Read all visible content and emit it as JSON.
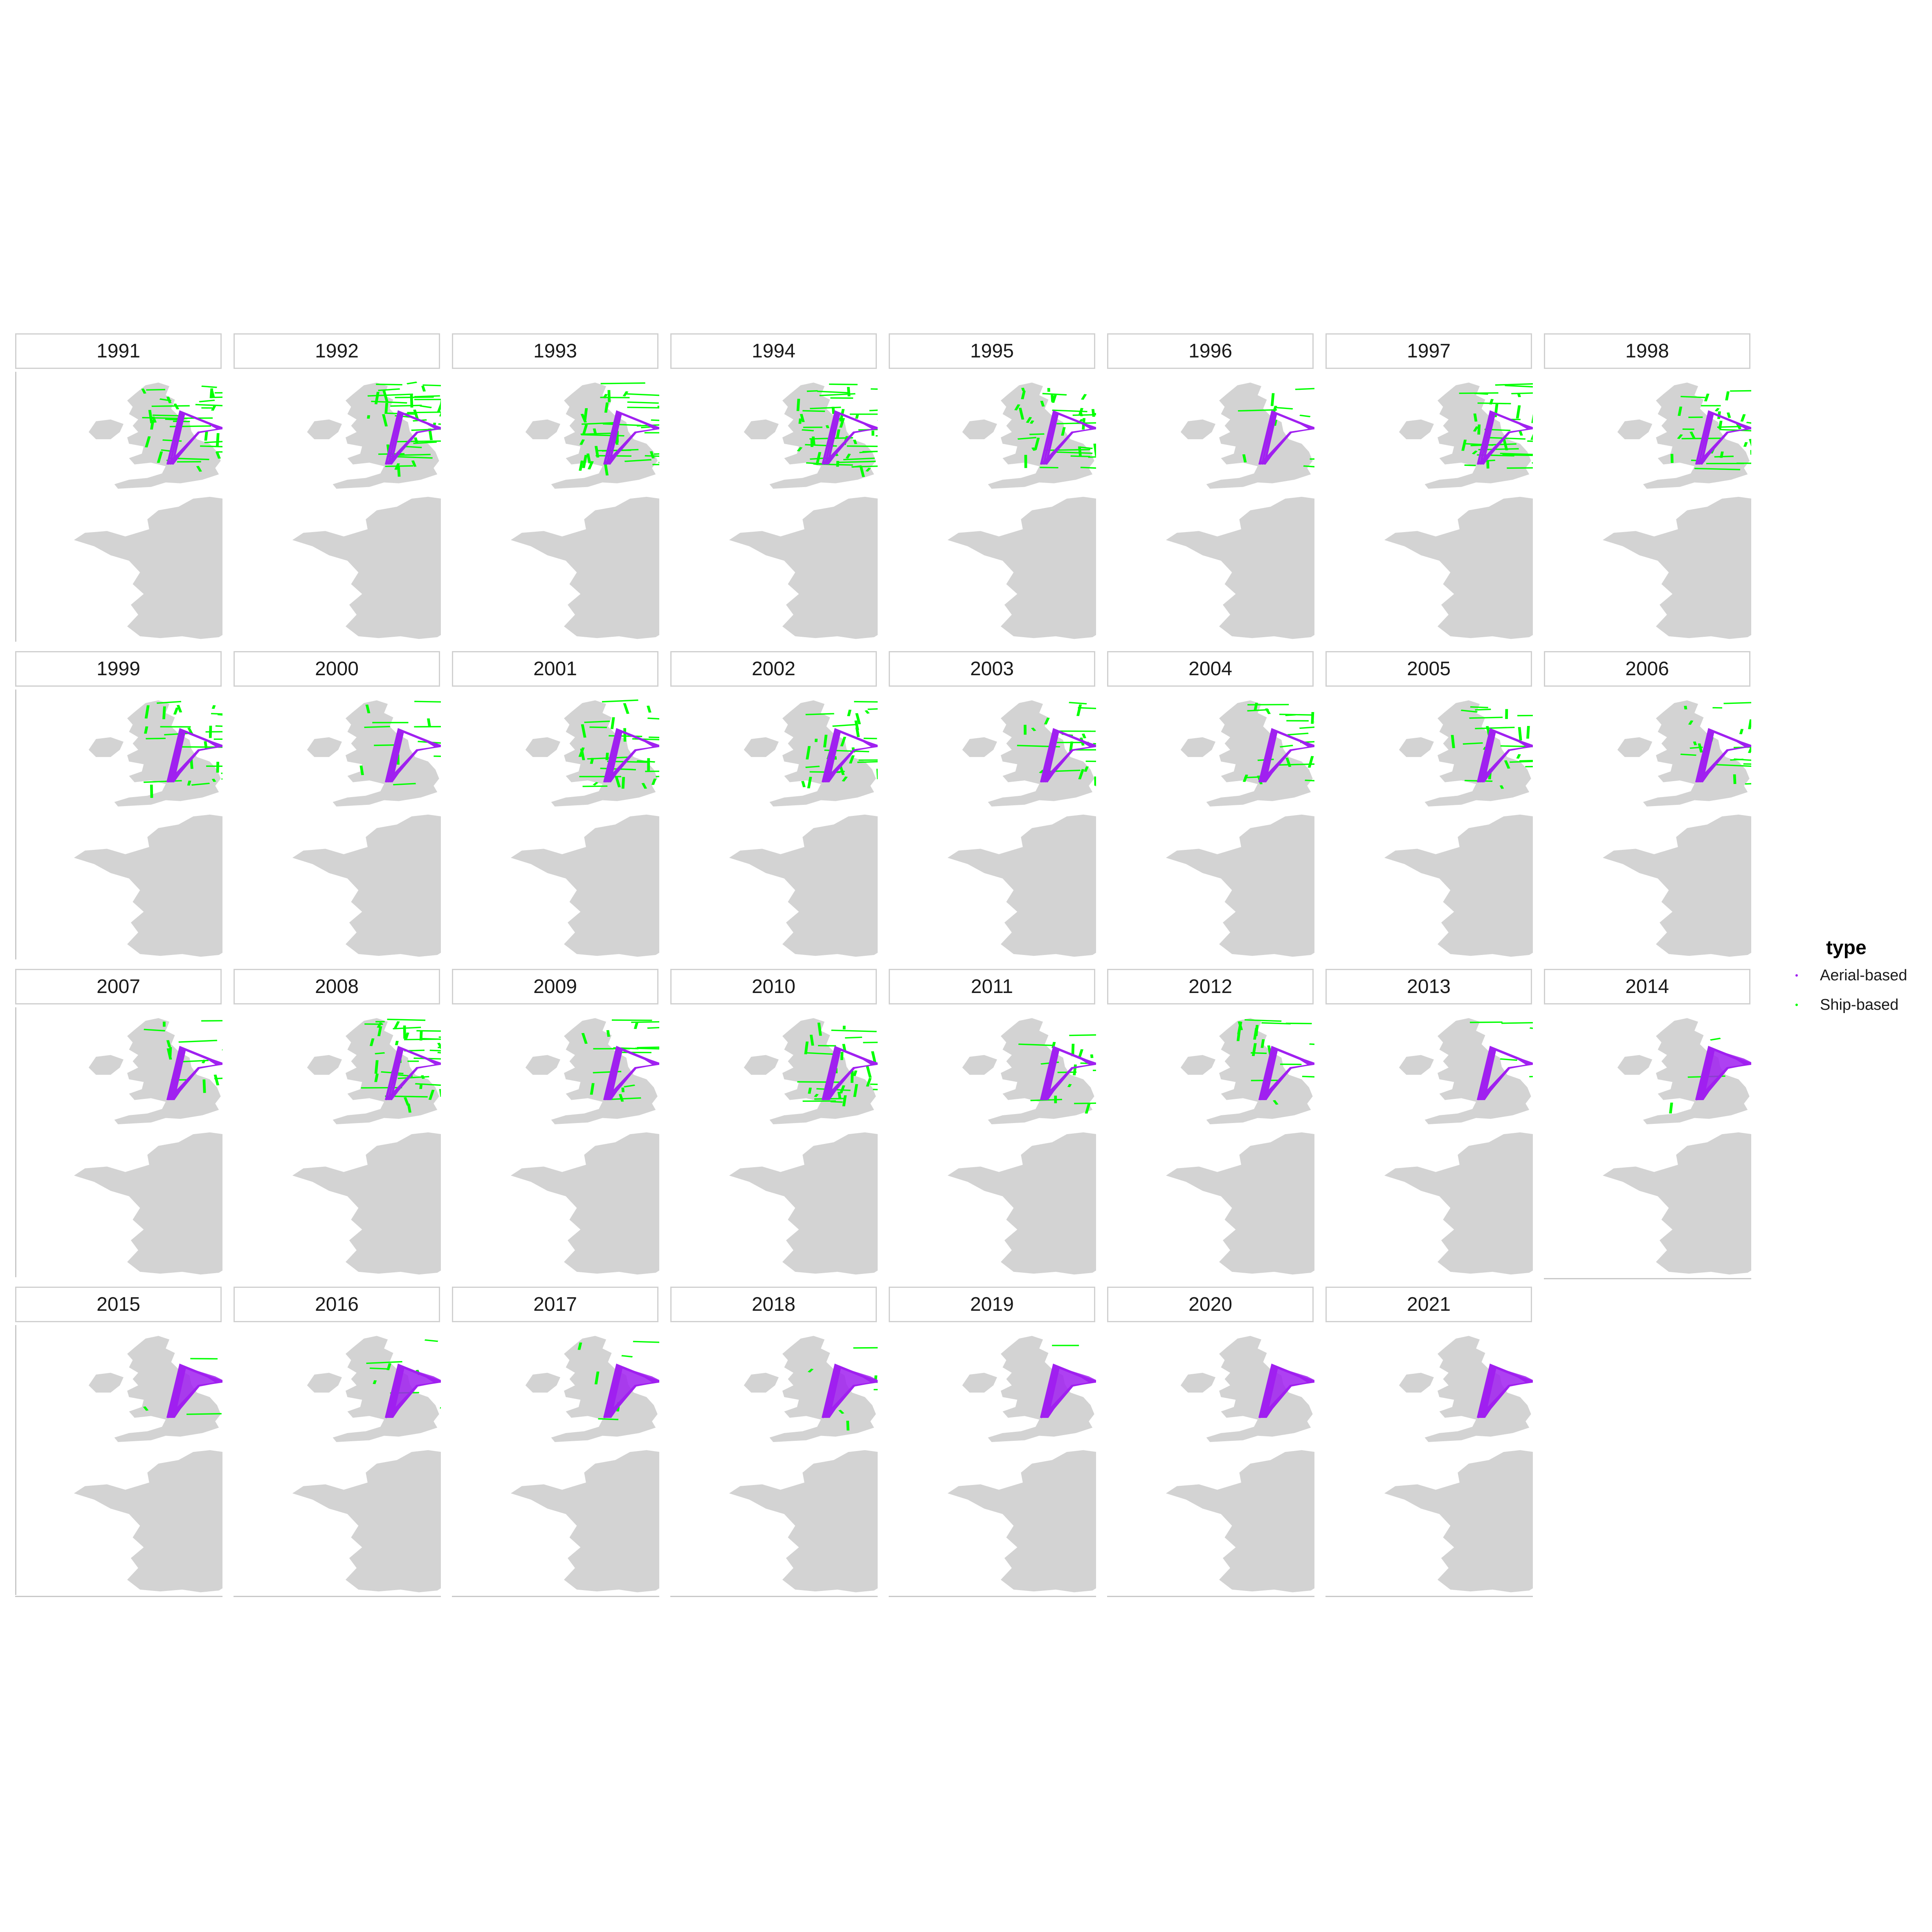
{
  "legend": {
    "title": "type",
    "items": [
      {
        "label": "Aerial-based",
        "color": "#a020f0"
      },
      {
        "label": "Ship-based",
        "color": "#00ff00"
      }
    ]
  },
  "colors": {
    "land": "#d3d3d3",
    "aerial": "#a020f0",
    "ship": "#00ff00",
    "strip_border": "#d0d0d0",
    "axis": "#c8c8c8"
  },
  "panels": [
    {
      "year": "1991",
      "aerial": 0.55,
      "ship": 0.7
    },
    {
      "year": "1992",
      "aerial": 0.55,
      "ship": 0.75
    },
    {
      "year": "1993",
      "aerial": 0.55,
      "ship": 0.8
    },
    {
      "year": "1994",
      "aerial": 0.55,
      "ship": 0.95
    },
    {
      "year": "1995",
      "aerial": 0.45,
      "ship": 0.7
    },
    {
      "year": "1996",
      "aerial": 0.55,
      "ship": 0.25
    },
    {
      "year": "1997",
      "aerial": 0.55,
      "ship": 0.7
    },
    {
      "year": "1998",
      "aerial": 0.45,
      "ship": 0.55
    },
    {
      "year": "1999",
      "aerial": 0.65,
      "ship": 0.55
    },
    {
      "year": "2000",
      "aerial": 0.7,
      "ship": 0.2
    },
    {
      "year": "2001",
      "aerial": 0.7,
      "ship": 0.55
    },
    {
      "year": "2002",
      "aerial": 0.7,
      "ship": 0.55
    },
    {
      "year": "2003",
      "aerial": 0.7,
      "ship": 0.45
    },
    {
      "year": "2004",
      "aerial": 0.7,
      "ship": 0.4
    },
    {
      "year": "2005",
      "aerial": 0.7,
      "ship": 0.45
    },
    {
      "year": "2006",
      "aerial": 0.7,
      "ship": 0.35
    },
    {
      "year": "2007",
      "aerial": 0.75,
      "ship": 0.3
    },
    {
      "year": "2008",
      "aerial": 0.55,
      "ship": 0.75
    },
    {
      "year": "2009",
      "aerial": 0.75,
      "ship": 0.3
    },
    {
      "year": "2010",
      "aerial": 0.75,
      "ship": 0.6
    },
    {
      "year": "2011",
      "aerial": 0.85,
      "ship": 0.35
    },
    {
      "year": "2012",
      "aerial": 0.8,
      "ship": 0.3
    },
    {
      "year": "2013",
      "aerial": 0.85,
      "ship": 0.1
    },
    {
      "year": "2014",
      "aerial": 0.95,
      "ship": 0.05
    },
    {
      "year": "2015",
      "aerial": 1.0,
      "ship": 0.05
    },
    {
      "year": "2016",
      "aerial": 0.95,
      "ship": 0.15
    },
    {
      "year": "2017",
      "aerial": 0.9,
      "ship": 0.1
    },
    {
      "year": "2018",
      "aerial": 0.9,
      "ship": 0.15
    },
    {
      "year": "2019",
      "aerial": 1.0,
      "ship": 0.05
    },
    {
      "year": "2020",
      "aerial": 1.0,
      "ship": 0.0
    },
    {
      "year": "2021",
      "aerial": 1.0,
      "ship": 0.0
    }
  ]
}
